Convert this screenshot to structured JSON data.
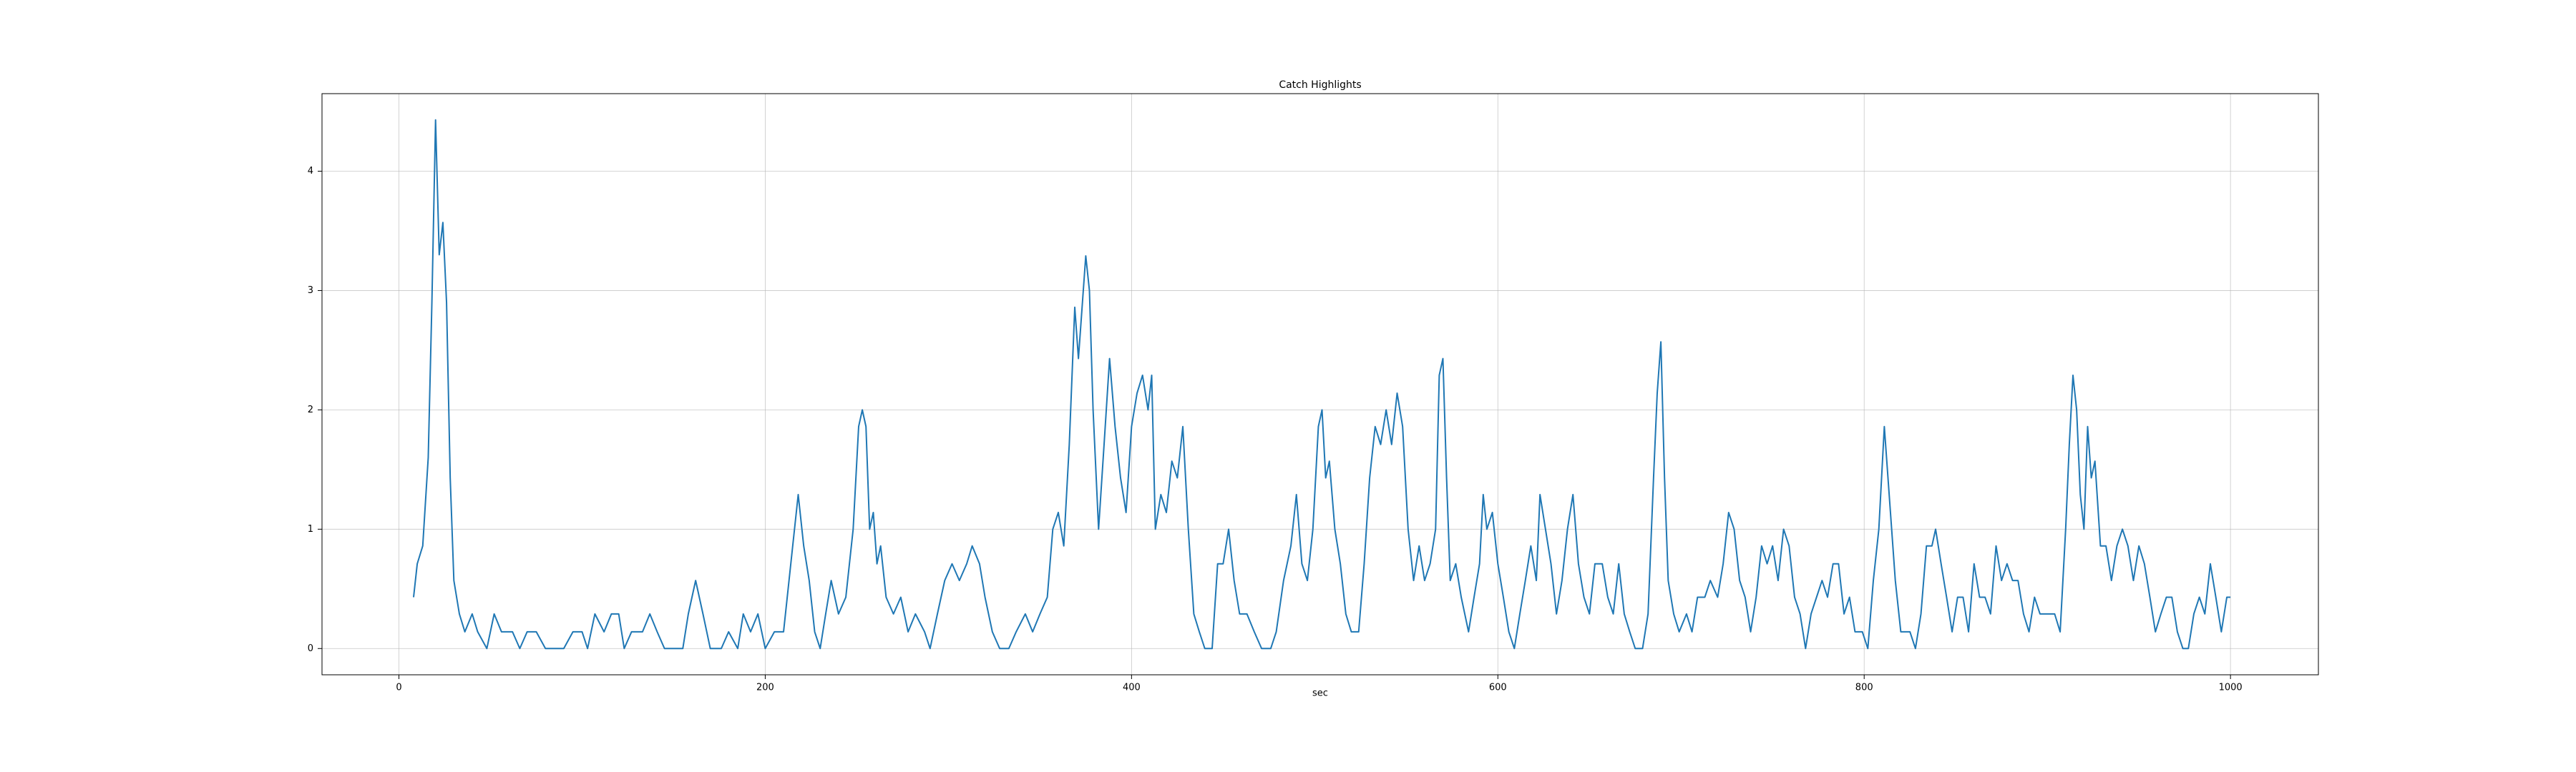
{
  "chart_data": {
    "type": "line",
    "title": "Catch Highlights",
    "x_label": "sec",
    "x": [
      8,
      10,
      13,
      16,
      18,
      20,
      22,
      24,
      26,
      28,
      30,
      33,
      36,
      40,
      43,
      48,
      52,
      56,
      62,
      66,
      70,
      75,
      80,
      90,
      95,
      100,
      103,
      107,
      112,
      116,
      120,
      123,
      127,
      133,
      137,
      141,
      145,
      155,
      158,
      162,
      166,
      170,
      176,
      180,
      185,
      188,
      192,
      196,
      200,
      205,
      210,
      215,
      218,
      221,
      224,
      227,
      230,
      233,
      236,
      240,
      244,
      248,
      251,
      253,
      255,
      257,
      259,
      261,
      263,
      266,
      270,
      274,
      278,
      282,
      287,
      290,
      294,
      298,
      302,
      306,
      310,
      313,
      317,
      320,
      324,
      328,
      333,
      337,
      342,
      346,
      350,
      354,
      357,
      360,
      363,
      366,
      369,
      371,
      373,
      375,
      377,
      379,
      382,
      385,
      388,
      391,
      394,
      397,
      400,
      403,
      406,
      409,
      411,
      413,
      416,
      419,
      422,
      425,
      428,
      431,
      434,
      437,
      440,
      444,
      447,
      450,
      453,
      456,
      459,
      463,
      467,
      471,
      476,
      479,
      483,
      487,
      490,
      493,
      496,
      499,
      502,
      504,
      506,
      508,
      511,
      514,
      517,
      520,
      524,
      527,
      530,
      533,
      536,
      539,
      542,
      545,
      548,
      551,
      554,
      557,
      560,
      563,
      566,
      568,
      570,
      572,
      574,
      577,
      580,
      584,
      587,
      590,
      592,
      594,
      597,
      600,
      603,
      606,
      609,
      612,
      615,
      618,
      621,
      623,
      626,
      629,
      632,
      635,
      638,
      641,
      644,
      647,
      650,
      653,
      657,
      660,
      663,
      666,
      669,
      672,
      675,
      679,
      682,
      685,
      687,
      689,
      691,
      693,
      696,
      699,
      703,
      706,
      709,
      713,
      716,
      720,
      723,
      726,
      729,
      732,
      735,
      738,
      741,
      744,
      747,
      750,
      753,
      756,
      759,
      762,
      765,
      768,
      771,
      774,
      777,
      780,
      783,
      786,
      789,
      792,
      795,
      799,
      802,
      805,
      808,
      811,
      813,
      815,
      817,
      820,
      825,
      828,
      831,
      834,
      837,
      839,
      842,
      845,
      848,
      851,
      854,
      857,
      860,
      863,
      866,
      869,
      872,
      875,
      878,
      881,
      884,
      887,
      890,
      893,
      896,
      900,
      904,
      907,
      910,
      912,
      914,
      916,
      918,
      920,
      922,
      924,
      926,
      929,
      932,
      935,
      938,
      941,
      944,
      947,
      950,
      953,
      956,
      959,
      962,
      965,
      968,
      971,
      974,
      977,
      980,
      983,
      986,
      989,
      992,
      995,
      998,
      1000
    ],
    "series": [
      {
        "color": "#1f77b4",
        "values": [
          0.43,
          0.71,
          0.86,
          1.6,
          2.9,
          4.43,
          3.3,
          3.57,
          2.9,
          1.43,
          0.57,
          0.29,
          0.14,
          0.29,
          0.14,
          0,
          0.29,
          0.14,
          0.14,
          0,
          0.14,
          0.14,
          0,
          0,
          0.14,
          0.14,
          0,
          0.29,
          0.14,
          0.29,
          0.29,
          0,
          0.14,
          0.14,
          0.29,
          0.14,
          0,
          0,
          0.29,
          0.57,
          0.29,
          0,
          0,
          0.14,
          0,
          0.29,
          0.14,
          0.29,
          0,
          0.14,
          0.14,
          0.86,
          1.29,
          0.86,
          0.57,
          0.14,
          0,
          0.29,
          0.57,
          0.29,
          0.43,
          1.0,
          1.86,
          2.0,
          1.86,
          1.0,
          1.14,
          0.71,
          0.86,
          0.43,
          0.29,
          0.43,
          0.14,
          0.29,
          0.14,
          0,
          0.29,
          0.57,
          0.71,
          0.57,
          0.71,
          0.86,
          0.71,
          0.43,
          0.14,
          0,
          0,
          0.14,
          0.29,
          0.14,
          0.29,
          0.43,
          1.0,
          1.14,
          0.86,
          1.71,
          2.86,
          2.43,
          2.86,
          3.29,
          3.0,
          2.0,
          1.0,
          1.71,
          2.43,
          1.86,
          1.43,
          1.14,
          1.86,
          2.14,
          2.29,
          2.0,
          2.29,
          1.0,
          1.29,
          1.14,
          1.57,
          1.43,
          1.86,
          1.0,
          0.29,
          0.14,
          0,
          0,
          0.71,
          0.71,
          1.0,
          0.57,
          0.29,
          0.29,
          0.14,
          0,
          0,
          0.14,
          0.57,
          0.86,
          1.29,
          0.71,
          0.57,
          1.0,
          1.86,
          2.0,
          1.43,
          1.57,
          1.0,
          0.71,
          0.29,
          0.14,
          0.14,
          0.71,
          1.43,
          1.86,
          1.71,
          2.0,
          1.71,
          2.14,
          1.86,
          1.0,
          0.57,
          0.86,
          0.57,
          0.71,
          1.0,
          2.29,
          2.43,
          1.43,
          0.57,
          0.71,
          0.43,
          0.14,
          0.43,
          0.71,
          1.29,
          1.0,
          1.14,
          0.71,
          0.43,
          0.14,
          0,
          0.29,
          0.57,
          0.86,
          0.57,
          1.29,
          1.0,
          0.71,
          0.29,
          0.57,
          1.0,
          1.29,
          0.71,
          0.43,
          0.29,
          0.71,
          0.71,
          0.43,
          0.29,
          0.71,
          0.29,
          0.14,
          0,
          0,
          0.29,
          1.43,
          2.14,
          2.57,
          1.43,
          0.57,
          0.29,
          0.14,
          0.29,
          0.14,
          0.43,
          0.43,
          0.57,
          0.43,
          0.71,
          1.14,
          1.0,
          0.57,
          0.43,
          0.14,
          0.43,
          0.86,
          0.71,
          0.86,
          0.57,
          1.0,
          0.86,
          0.43,
          0.29,
          0,
          0.29,
          0.43,
          0.57,
          0.43,
          0.71,
          0.71,
          0.29,
          0.43,
          0.14,
          0.14,
          0,
          0.57,
          1.0,
          1.86,
          1.43,
          1.0,
          0.57,
          0.14,
          0.14,
          0,
          0.29,
          0.86,
          0.86,
          1.0,
          0.71,
          0.43,
          0.14,
          0.43,
          0.43,
          0.14,
          0.71,
          0.43,
          0.43,
          0.29,
          0.86,
          0.57,
          0.71,
          0.57,
          0.57,
          0.29,
          0.14,
          0.43,
          0.29,
          0.29,
          0.29,
          0.14,
          1.0,
          1.71,
          2.29,
          2.0,
          1.29,
          1.0,
          1.86,
          1.43,
          1.57,
          0.86,
          0.86,
          0.57,
          0.86,
          1.0,
          0.86,
          0.57,
          0.86,
          0.71,
          0.43,
          0.14,
          0.29,
          0.43,
          0.43,
          0.14,
          0,
          0,
          0.29,
          0.43,
          0.29,
          0.71,
          0.43,
          0.14,
          0.43,
          0.43
        ]
      }
    ],
    "xlim": [
      -42,
      1048
    ],
    "ylim": [
      -0.22,
      4.65
    ],
    "xticks": [
      0,
      200,
      400,
      600,
      800,
      1000
    ],
    "yticks": [
      0,
      1,
      2,
      3,
      4
    ],
    "grid": true
  }
}
